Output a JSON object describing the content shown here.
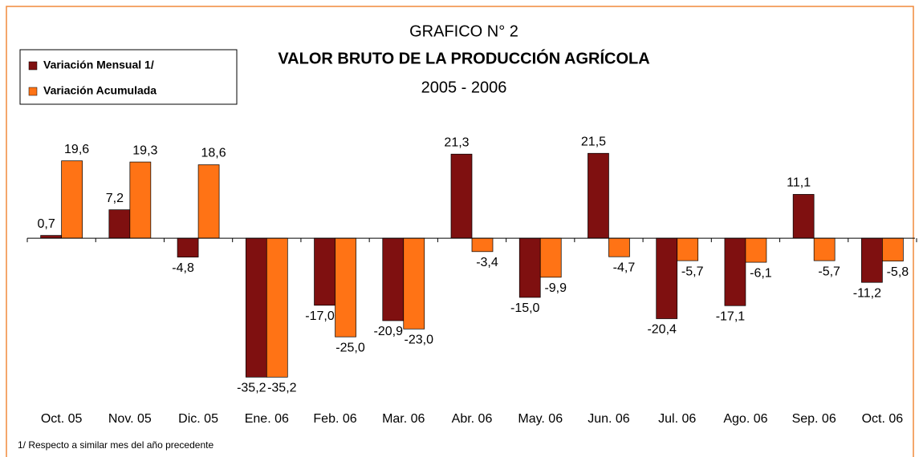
{
  "chart_data": {
    "type": "bar",
    "title": "GRAFICO N° 2",
    "subtitle": "VALOR BRUTO DE LA PRODUCCIÓN AGRÍCOLA",
    "period": "2005 - 2006",
    "footnote": "1/ Respecto a similar mes del año precedente",
    "categories": [
      "Oct. 05",
      "Nov. 05",
      "Dic. 05",
      "Ene. 06",
      "Feb. 06",
      "Mar. 06",
      "Abr. 06",
      "May. 06",
      "Jun. 06",
      "Jul. 06",
      "Ago. 06",
      "Sep. 06",
      "Oct. 06"
    ],
    "series": [
      {
        "name": "Variación Mensual 1/",
        "color": "#7f1010",
        "values": [
          0.7,
          7.2,
          -4.8,
          -35.2,
          -17.0,
          -20.9,
          21.3,
          -15.0,
          21.5,
          -20.4,
          -17.1,
          11.1,
          -11.2
        ],
        "value_labels": [
          "0,7",
          "7,2",
          "-4,8",
          "-35,2",
          "-17,0",
          "-20,9",
          "21,3",
          "-15,0",
          "21,5",
          "-20,4",
          "-17,1",
          "11,1",
          "-11,2"
        ]
      },
      {
        "name": "Variación Acumulada",
        "color": "#ff7315",
        "values": [
          19.6,
          19.3,
          18.6,
          -35.2,
          -25.0,
          -23.0,
          -3.4,
          -9.9,
          -4.7,
          -5.7,
          -6.1,
          -5.7,
          -5.8
        ],
        "value_labels": [
          "19,6",
          "19,3",
          "18,6",
          "-35,2",
          "-25,0",
          "-23,0",
          "-3,4",
          "-9,9",
          "-4,7",
          "-5,7",
          "-6,1",
          "-5,7",
          "-5,8"
        ]
      }
    ],
    "ylim": [
      -40,
      25
    ]
  }
}
